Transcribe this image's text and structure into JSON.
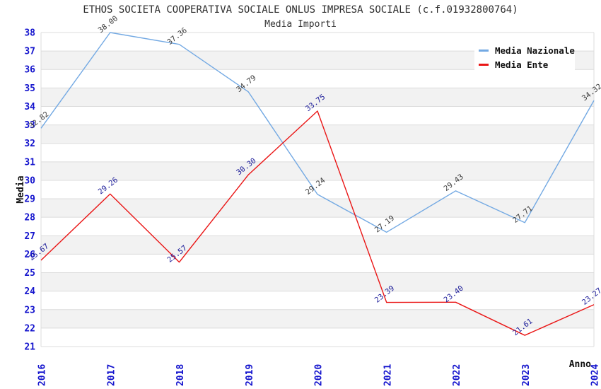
{
  "header": {
    "title": "ETHOS SOCIETA COOPERATIVA SOCIALE ONLUS IMPRESA SOCIALE (c.f.01932800764)",
    "subtitle": "Media Importi"
  },
  "axes": {
    "ylabel": "Media",
    "xlabel": "Anno"
  },
  "legend": {
    "items": [
      {
        "label": "Media Nazionale",
        "color": "#73a9e3"
      },
      {
        "label": "Media Ente",
        "color": "#ea1616"
      }
    ]
  },
  "chart_data": {
    "type": "line",
    "title": "ETHOS SOCIETA COOPERATIVA SOCIALE ONLUS IMPRESA SOCIALE (c.f.01932800764)",
    "subtitle": "Media Importi",
    "xlabel": "Anno",
    "ylabel": "Media",
    "x": [
      "2016",
      "2017",
      "2018",
      "2019",
      "2020",
      "2021",
      "2022",
      "2023",
      "2024"
    ],
    "series": [
      {
        "name": "Media Nazionale",
        "color": "#73a9e3",
        "label_color": "#3c3c3c",
        "values": [
          32.82,
          38.0,
          37.36,
          34.79,
          29.24,
          27.19,
          29.43,
          27.71,
          34.32
        ]
      },
      {
        "name": "Media Ente",
        "color": "#ea1616",
        "label_color": "#1a1a98",
        "values": [
          25.67,
          29.26,
          25.57,
          30.3,
          33.75,
          23.39,
          23.4,
          21.61,
          23.27
        ]
      }
    ],
    "ylim": [
      21,
      38
    ],
    "ytick_step": 1,
    "tick_color": "#1414cd",
    "grid_color": "#dcdcdc",
    "band_colors": [
      "#ffffff",
      "#f2f2f2"
    ],
    "grid": true,
    "legend_position": "top-right"
  }
}
